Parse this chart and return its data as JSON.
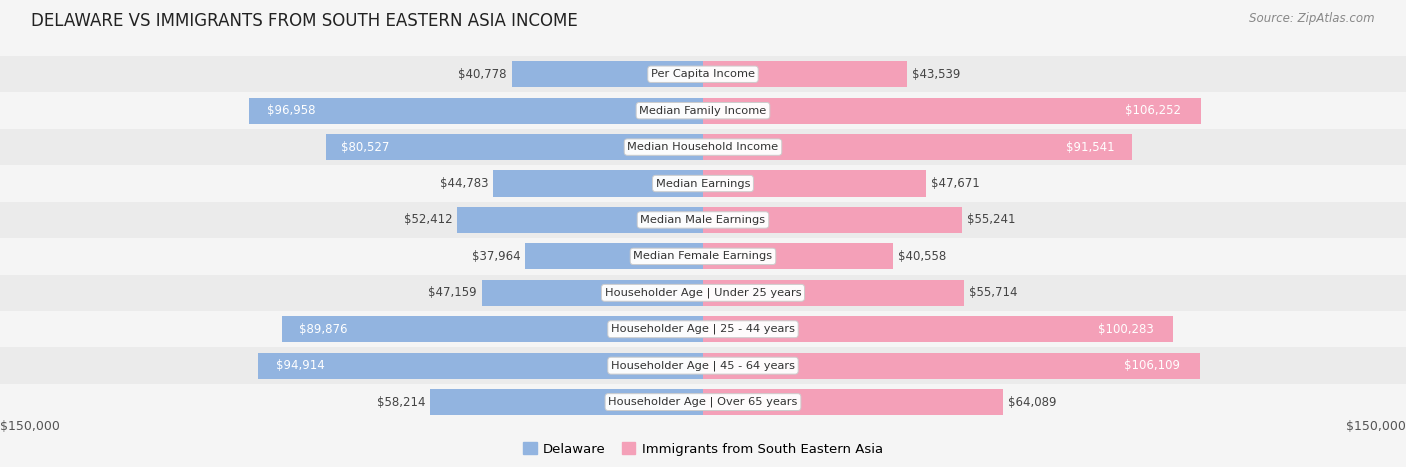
{
  "title": "DELAWARE VS IMMIGRANTS FROM SOUTH EASTERN ASIA INCOME",
  "source": "Source: ZipAtlas.com",
  "categories": [
    "Per Capita Income",
    "Median Family Income",
    "Median Household Income",
    "Median Earnings",
    "Median Male Earnings",
    "Median Female Earnings",
    "Householder Age | Under 25 years",
    "Householder Age | 25 - 44 years",
    "Householder Age | 45 - 64 years",
    "Householder Age | Over 65 years"
  ],
  "delaware_values": [
    40778,
    96958,
    80527,
    44783,
    52412,
    37964,
    47159,
    89876,
    94914,
    58214
  ],
  "immigrant_values": [
    43539,
    106252,
    91541,
    47671,
    55241,
    40558,
    55714,
    100283,
    106109,
    64089
  ],
  "delaware_labels": [
    "$40,778",
    "$96,958",
    "$80,527",
    "$44,783",
    "$52,412",
    "$37,964",
    "$47,159",
    "$89,876",
    "$94,914",
    "$58,214"
  ],
  "immigrant_labels": [
    "$43,539",
    "$106,252",
    "$91,541",
    "$47,671",
    "$55,241",
    "$40,558",
    "$55,714",
    "$100,283",
    "$106,109",
    "$64,089"
  ],
  "delaware_color": "#92b4e0",
  "immigrant_color": "#f4a0b8",
  "max_value": 150000,
  "label_fontsize": 8.5,
  "title_fontsize": 12,
  "bg_color": "#f5f5f5",
  "row_even_color": "#ebebeb",
  "row_odd_color": "#f5f5f5",
  "inside_label_threshold": 0.52
}
